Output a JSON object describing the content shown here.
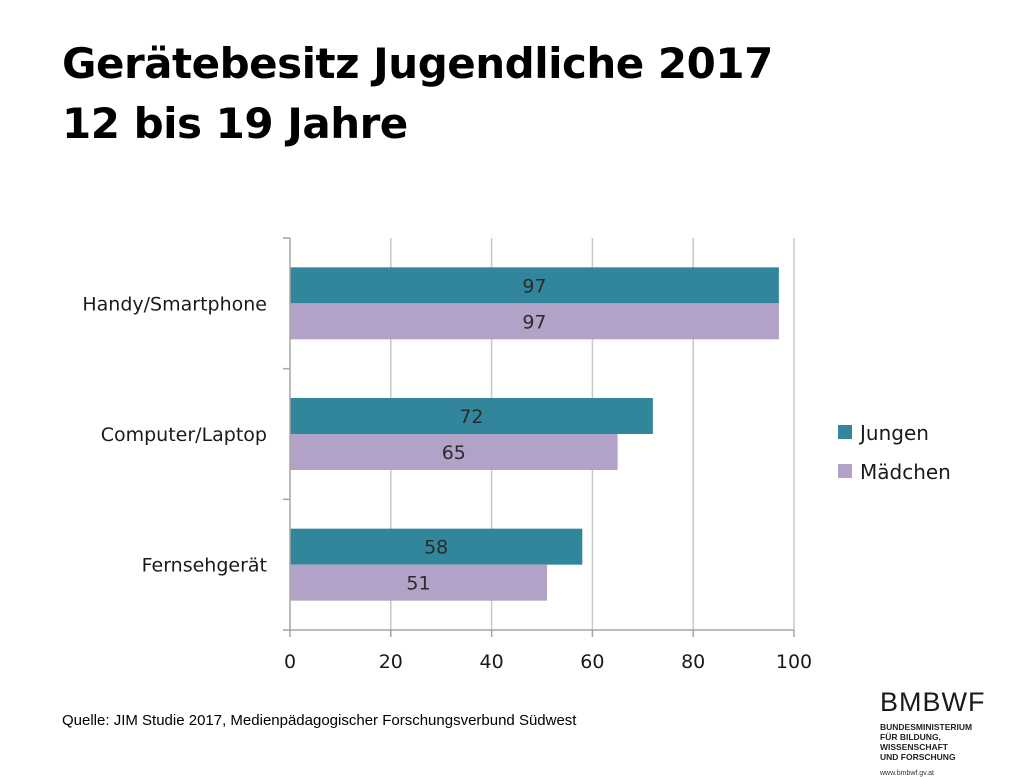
{
  "page": {
    "title_line1": "Gerätebesitz Jugendliche 2017",
    "title_line2": "12 bis 19 Jahre",
    "source": "Quelle: JIM Studie 2017, Medienpädagogischer Forschungsverbund Südwest"
  },
  "logo": {
    "name": "BMBWF",
    "line1": "BUNDESMINISTERIUM",
    "line2": "FÜR BILDUNG, WISSENSCHAFT",
    "line3": "UND FORSCHUNG",
    "url": "www.bmbwf.gv.at"
  },
  "chart_data": {
    "type": "bar",
    "orientation": "horizontal",
    "categories": [
      "Handy/Smartphone",
      "Computer/Laptop",
      "Fernsehgerät"
    ],
    "series": [
      {
        "name": "Jungen",
        "values": [
          97,
          72,
          58
        ],
        "color": "#31869B"
      },
      {
        "name": "Mädchen",
        "values": [
          97,
          65,
          51
        ],
        "color": "#B3A2C7"
      }
    ],
    "xlim": [
      0,
      100
    ],
    "xticks": [
      0,
      20,
      40,
      60,
      80,
      100
    ],
    "grid": true,
    "data_labels": true,
    "legend_position": "right"
  }
}
